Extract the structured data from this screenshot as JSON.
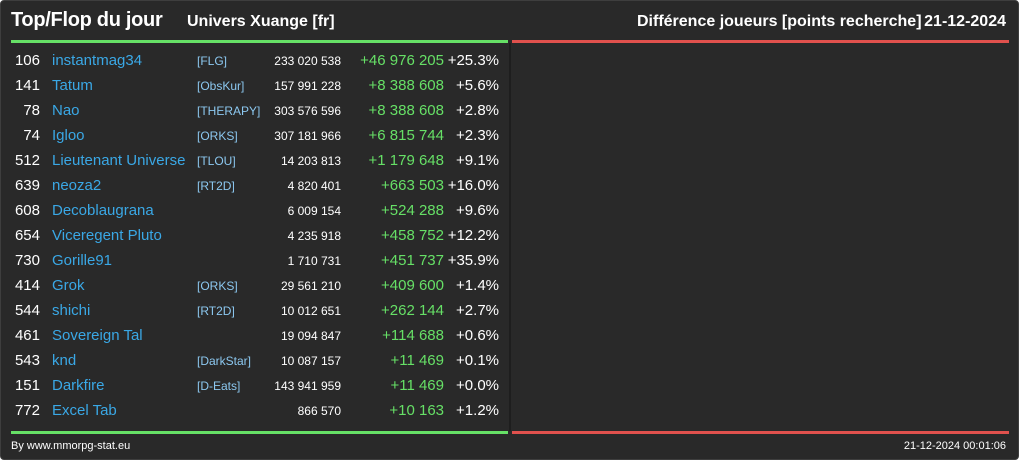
{
  "header": {
    "title": "Top/Flop du jour",
    "universe": "Univers Xuange [fr]",
    "category": "Différence joueurs [points recherche]",
    "date": "21-12-2024"
  },
  "colors": {
    "background": "#292929",
    "top_accent": "#66e066",
    "flop_accent": "#e0514d",
    "player_name": "#3aa8e6",
    "positive_diff": "#66e066"
  },
  "top_list": [
    {
      "rank": "106",
      "name": "instantmag34",
      "alliance": "[FLG]",
      "points": "233 020 538",
      "diff": "+46 976 205",
      "pct": "+25.3%"
    },
    {
      "rank": "141",
      "name": "Tatum",
      "alliance": "[ObsKur]",
      "points": "157 991 228",
      "diff": "+8 388 608",
      "pct": "+5.6%"
    },
    {
      "rank": "78",
      "name": "Nao",
      "alliance": "[THERAPY]",
      "points": "303 576 596",
      "diff": "+8 388 608",
      "pct": "+2.8%"
    },
    {
      "rank": "74",
      "name": "Igloo",
      "alliance": "[ORKS]",
      "points": "307 181 966",
      "diff": "+6 815 744",
      "pct": "+2.3%"
    },
    {
      "rank": "512",
      "name": "Lieutenant Universe",
      "alliance": "[TLOU]",
      "points": "14 203 813",
      "diff": "+1 179 648",
      "pct": "+9.1%"
    },
    {
      "rank": "639",
      "name": "neoza2",
      "alliance": "[RT2D]",
      "points": "4 820 401",
      "diff": "+663 503",
      "pct": "+16.0%"
    },
    {
      "rank": "608",
      "name": "Decoblaugrana",
      "alliance": "",
      "points": "6 009 154",
      "diff": "+524 288",
      "pct": "+9.6%"
    },
    {
      "rank": "654",
      "name": "Viceregent Pluto",
      "alliance": "",
      "points": "4 235 918",
      "diff": "+458 752",
      "pct": "+12.2%"
    },
    {
      "rank": "730",
      "name": "Gorille91",
      "alliance": "",
      "points": "1 710 731",
      "diff": "+451 737",
      "pct": "+35.9%"
    },
    {
      "rank": "414",
      "name": "Grok",
      "alliance": "[ORKS]",
      "points": "29 561 210",
      "diff": "+409 600",
      "pct": "+1.4%"
    },
    {
      "rank": "544",
      "name": "shichi",
      "alliance": "[RT2D]",
      "points": "10 012 651",
      "diff": "+262 144",
      "pct": "+2.7%"
    },
    {
      "rank": "461",
      "name": "Sovereign Tal",
      "alliance": "",
      "points": "19 094 847",
      "diff": "+114 688",
      "pct": "+0.6%"
    },
    {
      "rank": "543",
      "name": "knd",
      "alliance": "[DarkStar]",
      "points": "10 087 157",
      "diff": "+11 469",
      "pct": "+0.1%"
    },
    {
      "rank": "151",
      "name": "Darkfire",
      "alliance": "[D-Eats]",
      "points": "143 941 959",
      "diff": "+11 469",
      "pct": "+0.0%"
    },
    {
      "rank": "772",
      "name": "Excel Tab",
      "alliance": "",
      "points": "866 570",
      "diff": "+10 163",
      "pct": "+1.2%"
    }
  ],
  "footer": {
    "source": "By www.mmorpg-stat.eu",
    "timestamp": "21-12-2024 00:01:06"
  }
}
